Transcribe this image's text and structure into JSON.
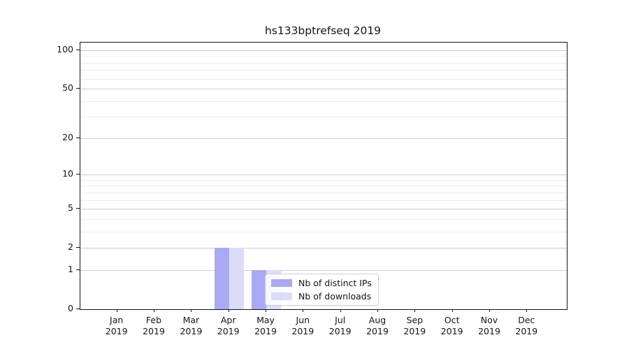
{
  "title": "hs133bptrefseq 2019",
  "chart_data": {
    "type": "bar",
    "title": "hs133bptrefseq 2019",
    "categories": [
      "Jan 2019",
      "Feb 2019",
      "Mar 2019",
      "Apr 2019",
      "May 2019",
      "Jun 2019",
      "Jul 2019",
      "Aug 2019",
      "Sep 2019",
      "Oct 2019",
      "Nov 2019",
      "Dec 2019"
    ],
    "series": [
      {
        "name": "Nb of distinct IPs",
        "color": "#a9a9f4",
        "values": [
          0,
          0,
          0,
          2,
          1,
          0,
          0,
          0,
          0,
          0,
          0,
          0
        ]
      },
      {
        "name": "Nb of downloads",
        "color": "#dcdcf9",
        "values": [
          0,
          0,
          0,
          2,
          1,
          0,
          0,
          0,
          0,
          0,
          0,
          0
        ]
      }
    ],
    "xlabel": "",
    "ylabel": "",
    "yscale": "log10(1+x)",
    "ylim": [
      0,
      115
    ],
    "y_major_ticks": [
      0,
      1,
      2,
      5,
      10,
      20,
      50,
      100
    ],
    "y_minor_gridlines": [
      3,
      4,
      6,
      7,
      8,
      9,
      30,
      40,
      60,
      70,
      80,
      90
    ],
    "grid": "horizontal",
    "legend_position": "inside lower-center-left",
    "legend_frame_alpha": 0.8
  },
  "colors": {
    "background": "#ffffff",
    "spine": "#141414",
    "grid_major": "#cccccc",
    "grid_minor": "#ebebeb",
    "text": "#141414",
    "bar_distinct_ips": "#a9a9f4",
    "bar_downloads": "#dcdcf9"
  }
}
